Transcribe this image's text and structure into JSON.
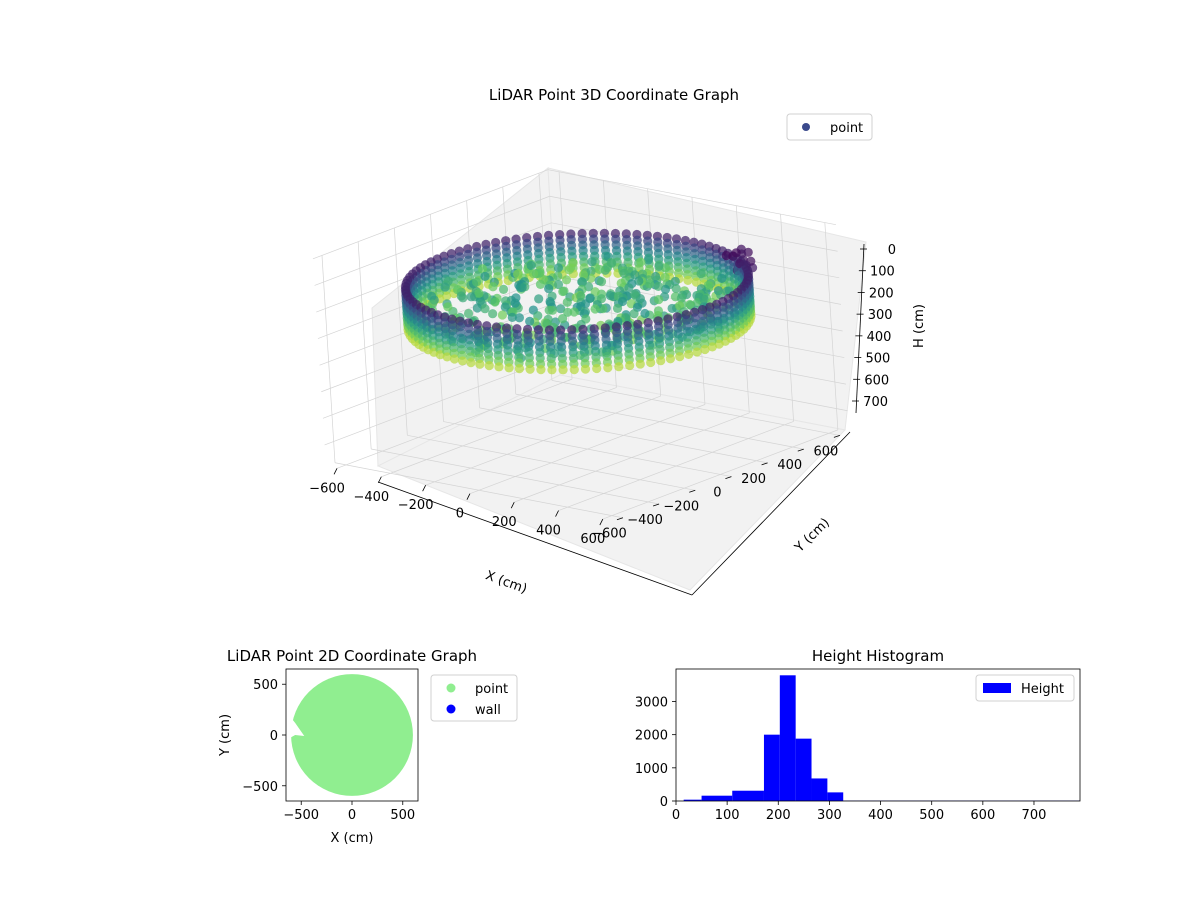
{
  "chart_data": [
    {
      "type": "scatter3d",
      "title": "LiDAR Point 3D Coordinate Graph",
      "xlabel": "X (cm)",
      "ylabel": "Y (cm)",
      "zlabel": "H (cm)",
      "xlim": [
        -650,
        650
      ],
      "ylim": [
        -650,
        650
      ],
      "zlim": [
        780,
        0
      ],
      "x_ticks": [
        -600,
        -400,
        -200,
        0,
        200,
        400,
        600
      ],
      "y_ticks": [
        -600,
        -400,
        -200,
        0,
        200,
        400,
        600
      ],
      "z_ticks": [
        0,
        100,
        200,
        300,
        400,
        500,
        600,
        700
      ],
      "legend": [
        {
          "label": "point",
          "color": "#3b4a8c"
        }
      ],
      "legend_position": "top-right",
      "colormap": "viridis",
      "grid": true,
      "wall_radius": 600,
      "wall_height_range": [
        150,
        300
      ]
    },
    {
      "type": "scatter",
      "title": "LiDAR Point 2D Coordinate Graph",
      "xlabel": "X (cm)",
      "ylabel": "Y (cm)",
      "xlim": [
        -650,
        650
      ],
      "ylim": [
        -650,
        650
      ],
      "x_ticks": [
        -500,
        0,
        500
      ],
      "y_ticks": [
        500,
        0,
        -500
      ],
      "legend": [
        {
          "label": "point",
          "color": "#90ee90"
        },
        {
          "label": "wall",
          "color": "#0000ff"
        }
      ],
      "legend_position": "outside-right",
      "disk_radius": 600,
      "gap_y": [
        -50,
        230
      ]
    },
    {
      "type": "bar",
      "title": "Height Histogram",
      "xlabel": "",
      "ylabel": "",
      "xlim": [
        0,
        790
      ],
      "ylim": [
        0,
        3980
      ],
      "x_ticks": [
        0,
        100,
        200,
        300,
        400,
        500,
        600,
        700
      ],
      "y_ticks": [
        0,
        1000,
        2000,
        3000
      ],
      "series": [
        {
          "name": "Height",
          "color": "#0000ff",
          "bins": [
            [
              15,
              50,
              40
            ],
            [
              50,
              110,
              160
            ],
            [
              110,
              172,
              310
            ],
            [
              172,
              203,
              2000
            ],
            [
              203,
              234,
              3790
            ],
            [
              234,
              265,
              1880
            ],
            [
              265,
              296,
              680
            ],
            [
              296,
              327,
              260
            ],
            [
              327,
              790,
              10
            ]
          ]
        }
      ],
      "legend_position": "top-right"
    }
  ]
}
